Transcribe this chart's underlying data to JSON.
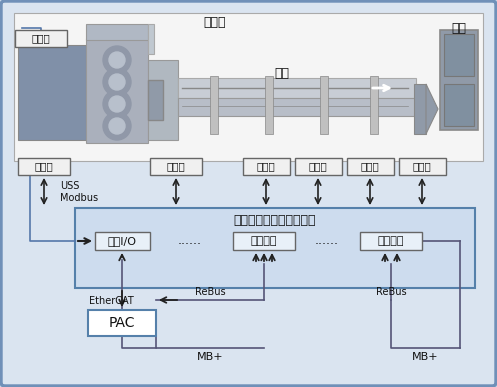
{
  "bg_color": "#dae4f0",
  "fig_bg": "#c5d5e8",
  "outer_border_color": "#7090b8",
  "text_color": "#111111",
  "labels": {
    "liquid": "液压油",
    "encoder": "编码器",
    "barrel": "料筒",
    "mold": "模具",
    "inverter": "变频器",
    "thermostat": "衡温器",
    "heater1": "加热器",
    "heater2": "加热器",
    "heater3": "加热器",
    "cooler": "冷却器",
    "controller_title": "网络化注塑机温度控制器",
    "io": "作为I/O",
    "master1": "作为主控",
    "master2": "作为主控",
    "pac": "PAC",
    "uss_modbus": "USS\nModbus",
    "ethercat": "EtherCAT",
    "rebus1": "ReBus",
    "rebus2": "ReBus",
    "mb1": "MB+",
    "mb2": "MB+",
    "dots1": "......",
    "dots2": "......"
  },
  "machine_bg": "#e8e8e8",
  "box_edge": "#666666",
  "box_face": "#f0f0f0",
  "ctrl_edge": "#5580aa",
  "ctrl_face": "#cddcee",
  "pac_edge": "#5580aa",
  "pac_face": "#ffffff",
  "arrow_col": "#222222",
  "line_col": "#555577",
  "encoder_box_edge": "#666666",
  "encoder_box_face": "#f0f0f0",
  "outer_lw": 2.0
}
